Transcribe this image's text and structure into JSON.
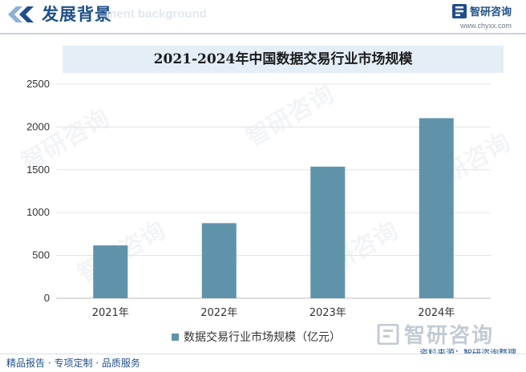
{
  "header": {
    "title": "发展背景",
    "ghost_text": "ment background",
    "brand_name": "智研咨询",
    "brand_url": "www.chyxx.com"
  },
  "chart_data": {
    "type": "bar",
    "title": "2021-2024年中国数据交易行业市场规模",
    "categories": [
      "2021年",
      "2022年",
      "2023年",
      "2024年"
    ],
    "series": [
      {
        "name": "数据交易行业市场规模（亿元）",
        "values": [
          617,
          877,
          1537,
          2103
        ]
      }
    ],
    "ylim": [
      0,
      2500
    ],
    "yticks": [
      0,
      500,
      1000,
      1500,
      2000,
      2500
    ],
    "grid": true,
    "legend_position": "bottom",
    "bar_color": "#5f93aa"
  },
  "footer": {
    "brand_name": "智研咨询",
    "source": "资料来源：智研咨询整理",
    "services": "精品报告 · 专项定制 · 品质服务"
  },
  "colors": {
    "brand": "#1f4f8c",
    "bar": "#5f93aa",
    "title_bg": "#e3eef7"
  }
}
